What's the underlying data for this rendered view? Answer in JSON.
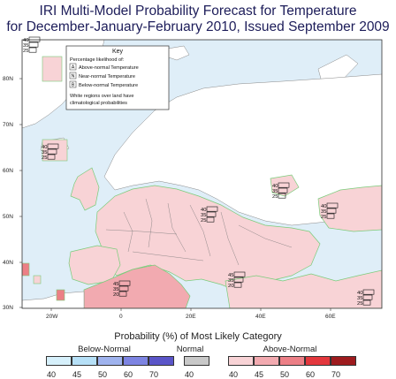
{
  "title": {
    "line1": "IRI Multi-Model Probability Forecast for Temperature",
    "line2": "for December-January-February 2010, Issued September 2009"
  },
  "key": {
    "heading": "Key",
    "subheading": "Percentage likelihood of:",
    "items": [
      {
        "letter": "A",
        "label": "Above-normal Temperature"
      },
      {
        "letter": "N",
        "label": "Near-normal Temperature"
      },
      {
        "letter": "B",
        "label": "Below-normal Temperature"
      }
    ],
    "note_line1": "White regions over land have",
    "note_line2": "climatological probabilities"
  },
  "axes": {
    "lat_labels": [
      "80N",
      "70N",
      "60N",
      "50N",
      "40N",
      "30N"
    ],
    "lon_labels": [
      "20W",
      "0",
      "20E",
      "40E",
      "60E"
    ]
  },
  "bar_glyphs": [
    {
      "values": [
        "40",
        "35",
        "25"
      ]
    },
    {
      "values": [
        "40",
        "35",
        "25"
      ]
    },
    {
      "values": [
        "40",
        "35",
        "25"
      ]
    },
    {
      "values": [
        "40",
        "35",
        "25"
      ]
    },
    {
      "values": [
        "40",
        "35",
        "25"
      ]
    },
    {
      "values": [
        "45",
        "35",
        "20"
      ]
    },
    {
      "values": [
        "45",
        "35",
        "20"
      ]
    },
    {
      "values": [
        "40",
        "35",
        "25"
      ]
    }
  ],
  "legend": {
    "title": "Probability (%) of Most Likely Category",
    "groups": [
      {
        "name": "Below-Normal",
        "ticks": [
          "40",
          "45",
          "50",
          "60",
          "70"
        ],
        "colors": [
          "#d6f0fb",
          "#b6e0f7",
          "#9fb3ee",
          "#7d84e2",
          "#5a55c8"
        ]
      },
      {
        "name": "Normal",
        "ticks": [
          "40"
        ],
        "colors": [
          "#c8c8c8"
        ]
      },
      {
        "name": "Above-Normal",
        "ticks": [
          "40",
          "45",
          "50",
          "60",
          "70"
        ],
        "colors": [
          "#f8d3d6",
          "#f2aab0",
          "#ec7f86",
          "#e3373d",
          "#9e1b1e"
        ]
      }
    ]
  },
  "colors": {
    "ocean": "#dfeef8",
    "land_climatology": "#ffffff",
    "above_40": "#f8d3d6",
    "above_45": "#f2aab0",
    "forecast_outline": "#7acc7a",
    "border": "#555555"
  }
}
